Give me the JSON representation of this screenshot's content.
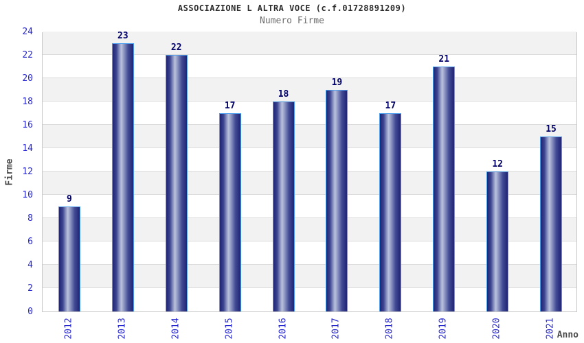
{
  "chart_data": {
    "type": "bar",
    "title": "ASSOCIAZIONE L ALTRA VOCE (c.f.01728891209)",
    "subtitle": "Numero Firme",
    "xlabel": "Anno",
    "ylabel": "Firme",
    "categories": [
      "2012",
      "2013",
      "2014",
      "2015",
      "2016",
      "2017",
      "2018",
      "2019",
      "2020",
      "2021"
    ],
    "values": [
      9,
      23,
      22,
      17,
      18,
      19,
      17,
      21,
      12,
      15
    ],
    "ylim": [
      0,
      24
    ],
    "ytick_step": 2,
    "grid": "horizontal-every-2",
    "banded_background": true,
    "legend": "none",
    "colors": {
      "tick_label": "#2626cd",
      "value_label": "#000066",
      "axis_label": "#4a4a4a",
      "title": "#2b2b2b",
      "subtitle": "#6e6e6e",
      "bar_border": "#4d9fee",
      "bar_dark": "#1f2473",
      "bar_highlight": "#bcc3dd",
      "band_gray": "#f2f2f2",
      "gridline": "#dcdcdc",
      "plot_border": "#c8c8c8"
    }
  }
}
